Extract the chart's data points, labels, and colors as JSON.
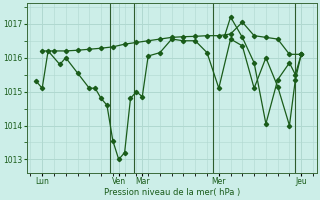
{
  "background_color": "#cceee8",
  "grid_color_major": "#b0d8d0",
  "grid_color_minor": "#c0e4dc",
  "line_color": "#1a5c1a",
  "ylabel": "Pression niveau de la mer( hPa )",
  "ylim": [
    1012.6,
    1017.6
  ],
  "yticks": [
    1013,
    1014,
    1015,
    1016,
    1017
  ],
  "xlim": [
    -0.3,
    24.3
  ],
  "day_labels": [
    "Lun",
    "Ven",
    "Mar",
    "Mer",
    "Jeu"
  ],
  "day_positions": [
    1,
    7.5,
    9.5,
    16,
    23
  ],
  "vline_positions": [
    6.8,
    8.8,
    15.5,
    22.5
  ],
  "series_jagged_x": [
    0.5,
    1.0,
    1.5,
    2.5,
    3.0,
    4.0,
    5.0,
    5.5,
    6.0,
    6.5,
    7.0,
    7.5,
    8.0,
    8.5,
    9.0,
    9.5,
    10.0,
    11.0,
    12.0,
    13.0,
    14.0,
    15.0,
    16.0,
    17.0,
    18.0,
    19.0,
    20.0,
    21.0,
    22.0,
    22.5,
    23.0
  ],
  "series_jagged_y": [
    1015.3,
    1015.1,
    1016.2,
    1015.8,
    1016.0,
    1015.55,
    1015.1,
    1015.1,
    1014.8,
    1014.6,
    1013.55,
    1013.0,
    1013.2,
    1014.8,
    1015.0,
    1014.85,
    1016.05,
    1016.15,
    1016.55,
    1016.5,
    1016.5,
    1016.15,
    1015.1,
    1016.55,
    1016.35,
    1015.1,
    1016.0,
    1015.15,
    1014.0,
    1015.35,
    1016.1
  ],
  "series_flat_x": [
    1.0,
    2.0,
    3.0,
    4.0,
    5.0,
    6.0,
    7.0,
    8.0,
    9.0,
    10.0,
    11.0,
    12.0,
    13.0,
    14.0,
    15.0,
    16.0,
    17.0,
    18.0,
    19.0,
    20.0,
    21.0,
    22.0,
    23.0
  ],
  "series_flat_y": [
    1016.2,
    1016.2,
    1016.2,
    1016.22,
    1016.25,
    1016.28,
    1016.32,
    1016.4,
    1016.45,
    1016.5,
    1016.55,
    1016.6,
    1016.62,
    1016.63,
    1016.65,
    1016.65,
    1016.7,
    1017.05,
    1016.65,
    1016.6,
    1016.55,
    1016.1,
    1016.1
  ],
  "series_right_x": [
    16.5,
    17.0,
    18.0,
    19.0,
    20.0,
    21.0,
    22.0,
    22.5,
    23.0
  ],
  "series_right_y": [
    1016.65,
    1017.2,
    1016.6,
    1015.85,
    1014.05,
    1015.35,
    1015.85,
    1015.5,
    1016.1
  ]
}
